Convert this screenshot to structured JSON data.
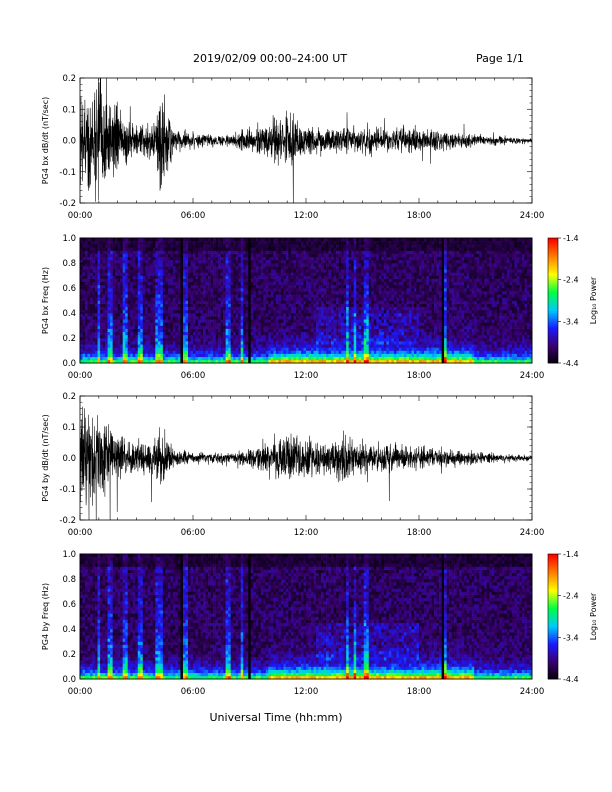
{
  "header": {
    "title": "2019/02/09   00:00–24:00 UT",
    "page": "Page 1/1"
  },
  "xlabel": "Universal Time (hh:mm)",
  "time_ticks": [
    "00:00",
    "06:00",
    "12:00",
    "18:00",
    "24:00"
  ],
  "colorbar": {
    "label": "Log₁₀ Power",
    "ticks": [
      "-1.4",
      "-2.4",
      "-3.4",
      "-4.4"
    ],
    "range": [
      -4.4,
      -1.4
    ],
    "colors": [
      "#000000",
      "#3a0070",
      "#1a1aff",
      "#00c8ff",
      "#00ff40",
      "#ffff00",
      "#ff8000",
      "#ff0000"
    ]
  },
  "chart_data": [
    {
      "type": "line",
      "panel": "bx-waveform",
      "ylabel": "PG4 bx dB/dt (nT/sec)",
      "xlim": [
        "00:00",
        "24:00"
      ],
      "ylim": [
        -0.2,
        0.2
      ],
      "ytick_labels": [
        "0.2",
        "0.1",
        "0.0",
        "-0.1",
        "-0.2"
      ],
      "amplitude_envelope": {
        "hours": [
          0,
          0.5,
          1,
          1.5,
          2,
          3,
          4,
          4.3,
          5,
          6,
          7,
          8,
          9,
          10,
          11,
          12,
          13,
          14,
          15,
          16,
          17,
          18,
          19,
          20,
          22,
          24
        ],
        "amplitude": [
          0.15,
          0.2,
          0.2,
          0.16,
          0.1,
          0.05,
          0.06,
          0.2,
          0.04,
          0.025,
          0.02,
          0.02,
          0.04,
          0.06,
          0.1,
          0.05,
          0.04,
          0.04,
          0.04,
          0.035,
          0.04,
          0.04,
          0.035,
          0.025,
          0.015,
          0.008
        ]
      }
    },
    {
      "type": "heatmap",
      "panel": "bx-spectrogram",
      "ylabel": "PG4 bx Freq (Hz)",
      "xlim": [
        "00:00",
        "24:00"
      ],
      "ylim": [
        0.0,
        1.0
      ],
      "ytick_labels": [
        "1.0",
        "0.8",
        "0.6",
        "0.4",
        "0.2",
        "0.0"
      ],
      "value": "Log10 Power",
      "value_range": [
        -4.4,
        -1.4
      ]
    },
    {
      "type": "line",
      "panel": "by-waveform",
      "ylabel": "PG4 by dB/dt (nT/sec)",
      "xlim": [
        "00:00",
        "24:00"
      ],
      "ylim": [
        -0.2,
        0.2
      ],
      "ytick_labels": [
        "0.2",
        "0.1",
        "0.0",
        "-0.1",
        "-0.2"
      ],
      "amplitude_envelope": {
        "hours": [
          0,
          0.5,
          1,
          1.5,
          2,
          3,
          4,
          4.3,
          5,
          6,
          7,
          8,
          9,
          10,
          11,
          12,
          13,
          14,
          15,
          16,
          17,
          18,
          19,
          20,
          22,
          24
        ],
        "amplitude": [
          0.17,
          0.19,
          0.15,
          0.12,
          0.08,
          0.05,
          0.06,
          0.1,
          0.03,
          0.02,
          0.02,
          0.02,
          0.03,
          0.05,
          0.1,
          0.07,
          0.05,
          0.08,
          0.05,
          0.05,
          0.04,
          0.04,
          0.035,
          0.025,
          0.015,
          0.008
        ]
      }
    },
    {
      "type": "heatmap",
      "panel": "by-spectrogram",
      "ylabel": "PG4 by Freq (Hz)",
      "xlim": [
        "00:00",
        "24:00"
      ],
      "ylim": [
        0.0,
        1.0
      ],
      "ytick_labels": [
        "1.0",
        "0.8",
        "0.6",
        "0.4",
        "0.2",
        "0.0"
      ],
      "value": "Log10 Power",
      "value_range": [
        -4.4,
        -1.4
      ]
    }
  ]
}
